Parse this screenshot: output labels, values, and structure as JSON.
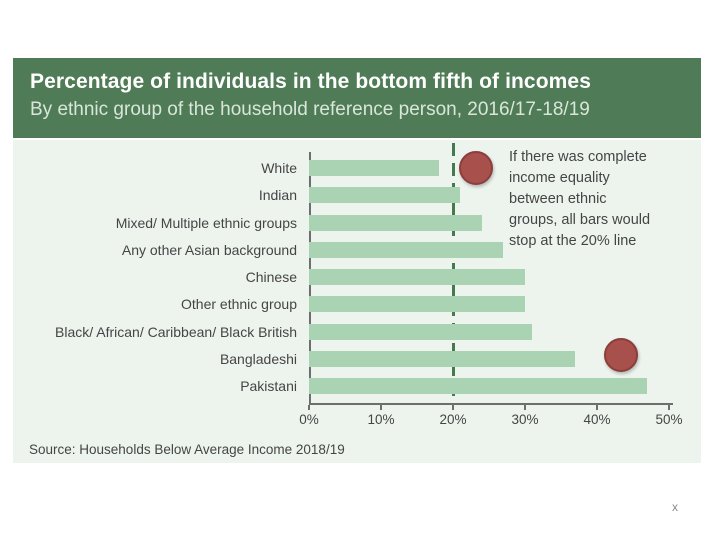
{
  "page": {
    "stray_text": "x"
  },
  "header": {
    "title": "Percentage of individuals in the bottom fifth of incomes",
    "subtitle": "By ethnic group of the household reference person, 2016/17-18/19"
  },
  "annotation": {
    "text": "If there was complete\nincome equality\nbetween ethnic\ngroups, all bars would\nstop at the 20% line"
  },
  "source": "Source: Households Below Average Income 2018/19",
  "colors": {
    "header_green": "#4f7c56",
    "panel_green": "#edf4ee",
    "bar_green": "#a9d3b2",
    "refline_green": "#45794e",
    "marker_red": "#a8504b",
    "marker_red_border": "#8b3e3b",
    "axis_gray": "#6e6e6e",
    "text_dark": "#454545"
  },
  "chart_data": {
    "type": "bar",
    "orientation": "horizontal",
    "title": "Percentage of individuals in the bottom fifth of incomes",
    "subtitle": "By ethnic group of the household reference person, 2016/17-18/19",
    "categories": [
      "White",
      "Indian",
      "Mixed/ Multiple ethnic groups",
      "Any other Asian background",
      "Chinese",
      "Other ethnic group",
      "Black/ African/ Caribbean/ Black British",
      "Bangladeshi",
      "Pakistani"
    ],
    "values": [
      18,
      21,
      24,
      27,
      30,
      30,
      31,
      37,
      47
    ],
    "unit": "%",
    "xlim": [
      0,
      50
    ],
    "x_ticks": [
      "0%",
      "10%",
      "20%",
      "30%",
      "40%",
      "50%"
    ],
    "x_tick_values": [
      0,
      10,
      20,
      30,
      40,
      50
    ],
    "reference_line": {
      "value": 20,
      "style": "dashed",
      "label": "20% line"
    },
    "grid": false,
    "legend": false,
    "annotations": [
      "If there was complete income equality between ethnic groups, all bars would stop at the 20% line"
    ]
  }
}
